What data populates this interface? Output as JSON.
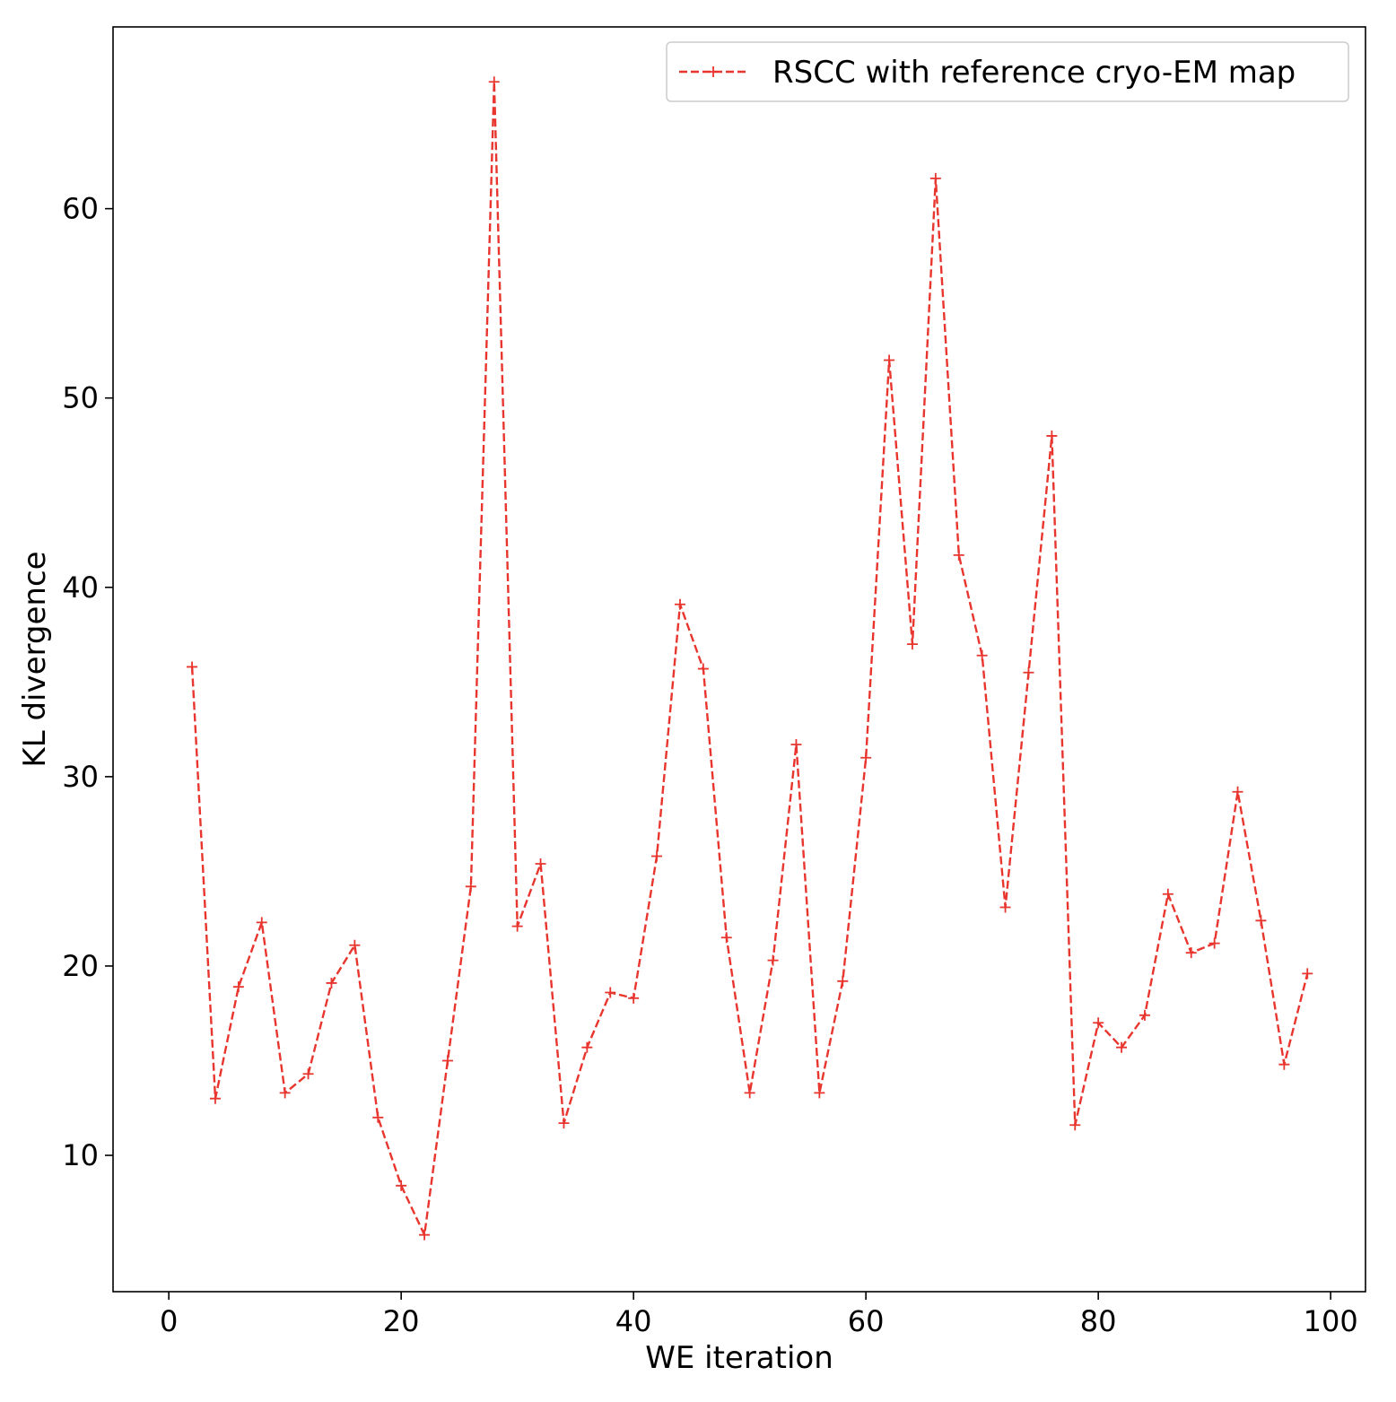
{
  "chart_data": {
    "type": "line",
    "xlabel": "WE iteration",
    "ylabel": "KL divergence",
    "xlim": [
      -4.8,
      103.0
    ],
    "ylim": [
      2.8,
      69.6
    ],
    "xticks": [
      0,
      20,
      40,
      60,
      80,
      100
    ],
    "yticks": [
      10,
      20,
      30,
      40,
      50,
      60
    ],
    "grid": false,
    "legend_position": "upper right",
    "series": [
      {
        "name": "RSCC with reference cryo-EM map",
        "color": "#e8352e",
        "linestyle": "dashed",
        "marker": "+",
        "x": [
          2,
          4,
          6,
          8,
          10,
          12,
          14,
          16,
          18,
          20,
          22,
          24,
          26,
          28,
          30,
          32,
          34,
          36,
          38,
          40,
          42,
          44,
          46,
          48,
          50,
          52,
          54,
          56,
          58,
          60,
          62,
          64,
          66,
          68,
          70,
          72,
          74,
          76,
          78,
          80,
          82,
          84,
          86,
          88,
          90,
          92,
          94,
          96,
          98
        ],
        "values": [
          35.8,
          13.0,
          18.9,
          22.3,
          13.3,
          14.3,
          19.1,
          21.1,
          12.0,
          8.4,
          5.8,
          15.0,
          24.2,
          66.7,
          22.1,
          25.4,
          11.7,
          15.7,
          18.6,
          18.3,
          25.8,
          39.1,
          35.7,
          21.5,
          13.3,
          20.3,
          31.7,
          13.3,
          19.2,
          31.0,
          52.0,
          37.0,
          61.6,
          41.7,
          36.4,
          23.1,
          35.5,
          48.0,
          11.6,
          17.0,
          15.7,
          17.4,
          23.8,
          20.7,
          21.2,
          29.2,
          22.4,
          14.8,
          19.6
        ]
      }
    ]
  }
}
